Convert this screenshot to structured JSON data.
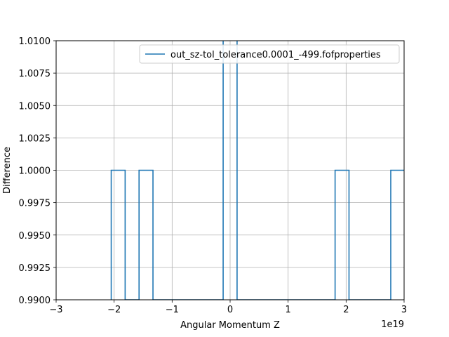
{
  "chart_data": {
    "type": "line",
    "drawstyle": "steps-mid",
    "title": "",
    "xlabel": "Angular Momentum Z",
    "ylabel": "Difference",
    "x_offset_label": "1e19",
    "xlim": [
      -3,
      3
    ],
    "ylim": [
      0.99,
      1.01
    ],
    "grid": true,
    "legend_position": "upper-right",
    "x_ticks": [
      -3,
      -2,
      -1,
      0,
      1,
      2,
      3
    ],
    "x_tick_labels": [
      "−3",
      "−2",
      "−1",
      "0",
      "1",
      "2",
      "3"
    ],
    "y_ticks": [
      0.99,
      0.9925,
      0.995,
      0.9975,
      1.0,
      1.0025,
      1.005,
      1.0075,
      1.01
    ],
    "y_tick_labels": [
      "0.9900",
      "0.9925",
      "0.9950",
      "0.9975",
      "1.0000",
      "1.0025",
      "1.0050",
      "1.0075",
      "1.0100"
    ],
    "series": [
      {
        "name": "out_sz-tol_tolerance0.0001_-499.fofproperties",
        "color": "#1f77b4",
        "step_x": [
          -2.05,
          -2.05,
          -1.81,
          -1.81,
          -1.57,
          -1.57,
          -1.33,
          -1.33,
          -0.12,
          -0.12,
          0.12,
          0.12,
          1.81,
          1.81,
          2.05,
          2.05,
          2.77,
          2.77,
          3.0
        ],
        "step_y": [
          0.99,
          1.0,
          1.0,
          0.99,
          0.99,
          1.0,
          1.0,
          0.99,
          0.99,
          1.02,
          1.02,
          0.99,
          0.99,
          1.0,
          1.0,
          0.99,
          0.99,
          1.0,
          1.0
        ]
      }
    ]
  },
  "colors": {
    "grid": "#b0b0b0",
    "axes": "#000000",
    "legend_border": "#cccccc"
  }
}
